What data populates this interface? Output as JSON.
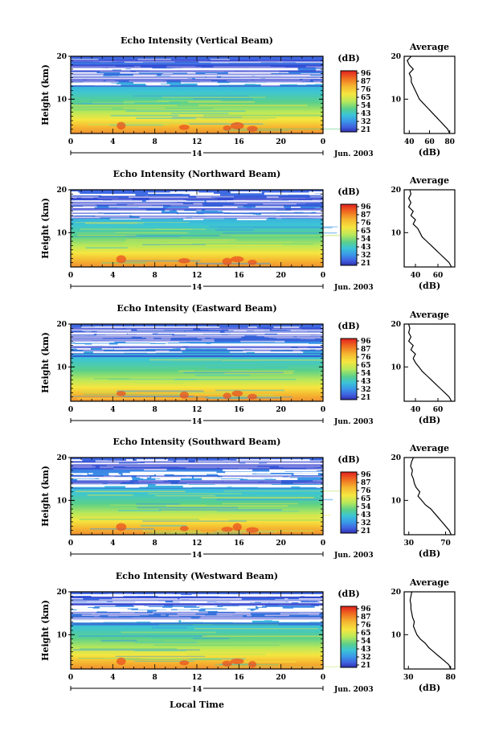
{
  "xlabel": "Local Time",
  "date_label": "Jun. 2003",
  "day_label": "14",
  "ylabel": "Height (km)",
  "colorbar": {
    "unit": "(dB)",
    "ticks": [
      "96",
      "87",
      "76",
      "65",
      "54",
      "43",
      "32",
      "21"
    ],
    "colors": [
      "#e02020",
      "#f06a20",
      "#f5b530",
      "#f5e640",
      "#b8e85a",
      "#5bd08a",
      "#3cc4d6",
      "#3a9ae8",
      "#3f62e0",
      "#3030b0"
    ]
  },
  "x_ticks": [
    "0",
    "4",
    "8",
    "12",
    "16",
    "20",
    "0"
  ],
  "y_ticks": [
    "20",
    "10"
  ],
  "profile_title": "Average",
  "profile_xlabel": "(dB)",
  "chart_data": [
    {
      "type": "heatmap",
      "title": "Echo Intensity (Vertical Beam)",
      "x_range_hours": [
        0,
        24
      ],
      "y_range_km": [
        2,
        20
      ],
      "z_range_db": [
        21,
        96
      ],
      "profile": {
        "title": "Average",
        "xticks": [
          "40",
          "60",
          "80"
        ],
        "xlim": [
          35,
          85
        ],
        "height_km": [
          2,
          3,
          4,
          5,
          6,
          7,
          8,
          9,
          10,
          11,
          12,
          13,
          14,
          15,
          16,
          17,
          18,
          19,
          20
        ],
        "db": [
          80,
          78,
          74,
          70,
          66,
          62,
          58,
          54,
          50,
          48,
          46,
          44,
          42,
          42,
          40,
          44,
          40,
          38,
          42
        ]
      }
    },
    {
      "type": "heatmap",
      "title": "Echo Intensity (Northward Beam)",
      "x_range_hours": [
        0,
        24
      ],
      "y_range_km": [
        2,
        20
      ],
      "z_range_db": [
        21,
        96
      ],
      "profile": {
        "title": "Average",
        "xticks": [
          "40",
          "60"
        ],
        "xlim": [
          30,
          75
        ],
        "height_km": [
          2,
          3,
          4,
          5,
          6,
          7,
          8,
          9,
          10,
          11,
          12,
          13,
          14,
          15,
          16,
          17,
          18,
          19,
          20
        ],
        "db": [
          72,
          70,
          66,
          62,
          58,
          54,
          50,
          46,
          44,
          42,
          38,
          40,
          36,
          38,
          34,
          36,
          34,
          36,
          35
        ]
      }
    },
    {
      "type": "heatmap",
      "title": "Echo Intensity (Eastward Beam)",
      "x_range_hours": [
        0,
        24
      ],
      "y_range_km": [
        2,
        20
      ],
      "z_range_db": [
        21,
        96
      ],
      "profile": {
        "title": "Average",
        "xticks": [
          "40",
          "60"
        ],
        "xlim": [
          30,
          75
        ],
        "height_km": [
          2,
          3,
          4,
          5,
          6,
          7,
          8,
          9,
          10,
          11,
          12,
          13,
          14,
          15,
          16,
          17,
          18,
          19,
          20
        ],
        "db": [
          72,
          70,
          66,
          62,
          58,
          54,
          50,
          46,
          43,
          40,
          38,
          40,
          36,
          38,
          34,
          36,
          34,
          35,
          34
        ]
      }
    },
    {
      "type": "heatmap",
      "title": "Echo Intensity (Southward Beam)",
      "x_range_hours": [
        0,
        24
      ],
      "y_range_km": [
        2,
        20
      ],
      "z_range_db": [
        21,
        96
      ],
      "profile": {
        "title": "Average",
        "xticks": [
          "30",
          "70"
        ],
        "xlim": [
          25,
          80
        ],
        "height_km": [
          2,
          3,
          4,
          5,
          6,
          7,
          8,
          9,
          10,
          11,
          12,
          13,
          14,
          15,
          16,
          17,
          18,
          19,
          20
        ],
        "db": [
          76,
          74,
          70,
          66,
          62,
          58,
          54,
          48,
          44,
          40,
          42,
          38,
          36,
          35,
          33,
          34,
          32,
          33,
          35
        ]
      }
    },
    {
      "type": "heatmap",
      "title": "Echo Intensity (Westward Beam)",
      "x_range_hours": [
        0,
        24
      ],
      "y_range_km": [
        2,
        20
      ],
      "z_range_db": [
        21,
        96
      ],
      "profile": {
        "title": "Average",
        "xticks": [
          "30",
          "80"
        ],
        "xlim": [
          25,
          85
        ],
        "height_km": [
          2,
          3,
          4,
          5,
          6,
          7,
          8,
          9,
          10,
          11,
          12,
          13,
          14,
          15,
          16,
          17,
          18,
          19,
          20
        ],
        "db": [
          80,
          78,
          72,
          66,
          60,
          54,
          50,
          44,
          40,
          38,
          36,
          37,
          35,
          34,
          33,
          33,
          32,
          33,
          34
        ]
      }
    }
  ]
}
